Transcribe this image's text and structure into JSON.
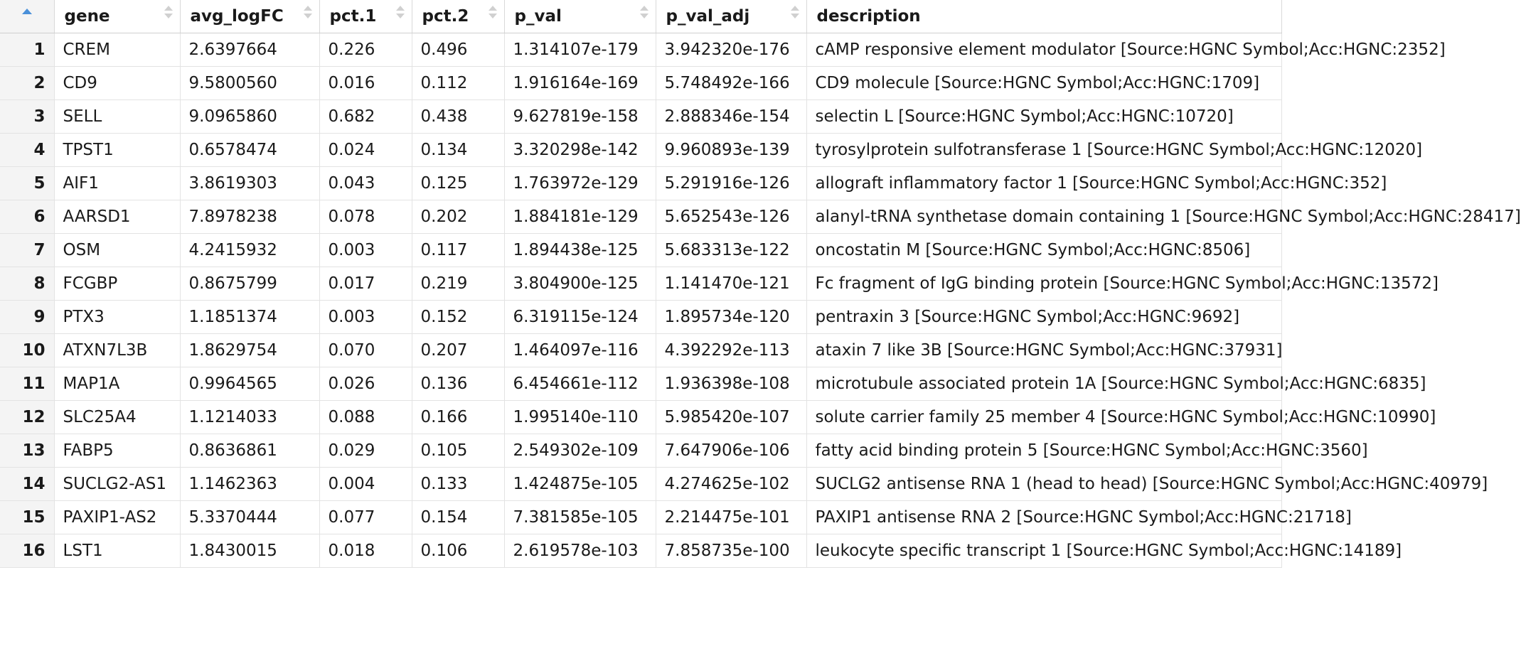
{
  "columns": [
    "gene",
    "avg_logFC",
    "pct.1",
    "pct.2",
    "p_val",
    "p_val_adj",
    "description"
  ],
  "sorted_column": "index",
  "sort_direction": "ascending",
  "rows": [
    {
      "idx": "1",
      "gene": "CREM",
      "avg_logFC": "2.6397664",
      "pct1": "0.226",
      "pct2": "0.496",
      "p_val": "1.314107e-179",
      "p_val_adj": "3.942320e-176",
      "description": "cAMP responsive element modulator [Source:HGNC Symbol;Acc:HGNC:2352]"
    },
    {
      "idx": "2",
      "gene": "CD9",
      "avg_logFC": "9.5800560",
      "pct1": "0.016",
      "pct2": "0.112",
      "p_val": "1.916164e-169",
      "p_val_adj": "5.748492e-166",
      "description": "CD9 molecule [Source:HGNC Symbol;Acc:HGNC:1709]"
    },
    {
      "idx": "3",
      "gene": "SELL",
      "avg_logFC": "9.0965860",
      "pct1": "0.682",
      "pct2": "0.438",
      "p_val": "9.627819e-158",
      "p_val_adj": "2.888346e-154",
      "description": "selectin L [Source:HGNC Symbol;Acc:HGNC:10720]"
    },
    {
      "idx": "4",
      "gene": "TPST1",
      "avg_logFC": "0.6578474",
      "pct1": "0.024",
      "pct2": "0.134",
      "p_val": "3.320298e-142",
      "p_val_adj": "9.960893e-139",
      "description": "tyrosylprotein sulfotransferase 1 [Source:HGNC Symbol;Acc:HGNC:12020]"
    },
    {
      "idx": "5",
      "gene": "AIF1",
      "avg_logFC": "3.8619303",
      "pct1": "0.043",
      "pct2": "0.125",
      "p_val": "1.763972e-129",
      "p_val_adj": "5.291916e-126",
      "description": "allograft inflammatory factor 1 [Source:HGNC Symbol;Acc:HGNC:352]"
    },
    {
      "idx": "6",
      "gene": "AARSD1",
      "avg_logFC": "7.8978238",
      "pct1": "0.078",
      "pct2": "0.202",
      "p_val": "1.884181e-129",
      "p_val_adj": "5.652543e-126",
      "description": "alanyl-tRNA synthetase domain containing 1 [Source:HGNC Symbol;Acc:HGNC:28417]"
    },
    {
      "idx": "7",
      "gene": "OSM",
      "avg_logFC": "4.2415932",
      "pct1": "0.003",
      "pct2": "0.117",
      "p_val": "1.894438e-125",
      "p_val_adj": "5.683313e-122",
      "description": "oncostatin M [Source:HGNC Symbol;Acc:HGNC:8506]"
    },
    {
      "idx": "8",
      "gene": "FCGBP",
      "avg_logFC": "0.8675799",
      "pct1": "0.017",
      "pct2": "0.219",
      "p_val": "3.804900e-125",
      "p_val_adj": "1.141470e-121",
      "description": "Fc fragment of IgG binding protein [Source:HGNC Symbol;Acc:HGNC:13572]"
    },
    {
      "idx": "9",
      "gene": "PTX3",
      "avg_logFC": "1.1851374",
      "pct1": "0.003",
      "pct2": "0.152",
      "p_val": "6.319115e-124",
      "p_val_adj": "1.895734e-120",
      "description": "pentraxin 3 [Source:HGNC Symbol;Acc:HGNC:9692]"
    },
    {
      "idx": "10",
      "gene": "ATXN7L3B",
      "avg_logFC": "1.8629754",
      "pct1": "0.070",
      "pct2": "0.207",
      "p_val": "1.464097e-116",
      "p_val_adj": "4.392292e-113",
      "description": "ataxin 7 like 3B [Source:HGNC Symbol;Acc:HGNC:37931]"
    },
    {
      "idx": "11",
      "gene": "MAP1A",
      "avg_logFC": "0.9964565",
      "pct1": "0.026",
      "pct2": "0.136",
      "p_val": "6.454661e-112",
      "p_val_adj": "1.936398e-108",
      "description": "microtubule associated protein 1A [Source:HGNC Symbol;Acc:HGNC:6835]"
    },
    {
      "idx": "12",
      "gene": "SLC25A4",
      "avg_logFC": "1.1214033",
      "pct1": "0.088",
      "pct2": "0.166",
      "p_val": "1.995140e-110",
      "p_val_adj": "5.985420e-107",
      "description": "solute carrier family 25 member 4 [Source:HGNC Symbol;Acc:HGNC:10990]"
    },
    {
      "idx": "13",
      "gene": "FABP5",
      "avg_logFC": "0.8636861",
      "pct1": "0.029",
      "pct2": "0.105",
      "p_val": "2.549302e-109",
      "p_val_adj": "7.647906e-106",
      "description": "fatty acid binding protein 5 [Source:HGNC Symbol;Acc:HGNC:3560]"
    },
    {
      "idx": "14",
      "gene": "SUCLG2-AS1",
      "avg_logFC": "1.1462363",
      "pct1": "0.004",
      "pct2": "0.133",
      "p_val": "1.424875e-105",
      "p_val_adj": "4.274625e-102",
      "description": "SUCLG2 antisense RNA 1 (head to head) [Source:HGNC Symbol;Acc:HGNC:40979]"
    },
    {
      "idx": "15",
      "gene": "PAXIP1-AS2",
      "avg_logFC": "5.3370444",
      "pct1": "0.077",
      "pct2": "0.154",
      "p_val": "7.381585e-105",
      "p_val_adj": "2.214475e-101",
      "description": "PAXIP1 antisense RNA 2 [Source:HGNC Symbol;Acc:HGNC:21718]"
    },
    {
      "idx": "16",
      "gene": "LST1",
      "avg_logFC": "1.8430015",
      "pct1": "0.018",
      "pct2": "0.106",
      "p_val": "2.619578e-103",
      "p_val_adj": "7.858735e-100",
      "description": "leukocyte specific transcript 1 [Source:HGNC Symbol;Acc:HGNC:14189]"
    }
  ]
}
